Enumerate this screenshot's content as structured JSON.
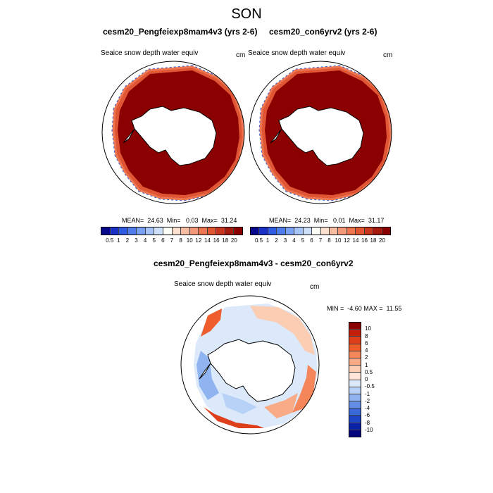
{
  "title": "SON",
  "panels": [
    {
      "title": "cesm20_Pengfeiexp8mam4v3 (yrs 2-6)",
      "variable": "Seaice snow depth water equiv",
      "units": "cm",
      "stats": "MEAN=  24.63  Min=   0.03  Max=  31.24"
    },
    {
      "title": "cesm20_con6yrv2 (yrs 2-6)",
      "variable": "Seaice snow depth water equiv",
      "units": "cm",
      "stats": "MEAN=  24.23  Min=   0.01  Max=  31.17"
    },
    {
      "title": "cesm20_Pengfeiexp8mam4v3 - cesm20_con6yrv2",
      "variable": "Seaice snow depth water equiv",
      "units": "cm",
      "stats": "MIN =  -4.60 MAX =  11.55"
    }
  ],
  "colorbars": {
    "absolute": {
      "labels": [
        "0.5",
        "1",
        "2",
        "3",
        "4",
        "5",
        "6",
        "7",
        "8",
        "10",
        "12",
        "14",
        "16",
        "18",
        "20"
      ],
      "colors": [
        "#08088c",
        "#1a2ec8",
        "#2f5be0",
        "#4f7eeb",
        "#7aa2f2",
        "#a6c4f7",
        "#cfe0fb",
        "#fdfdf7",
        "#fbe0cf",
        "#f7bda3",
        "#f29a78",
        "#ec7652",
        "#e05534",
        "#c9361f",
        "#a41a0c",
        "#8b0000"
      ]
    },
    "difference": {
      "labels": [
        "10",
        "8",
        "6",
        "4",
        "2",
        "1",
        "0.5",
        "0",
        "-0.5",
        "-1",
        "-2",
        "-4",
        "-6",
        "-8",
        "-10"
      ],
      "colors": [
        "#8b0000",
        "#c1200b",
        "#de3f1b",
        "#ef5d2c",
        "#f48659",
        "#f8ab86",
        "#fbcdb3",
        "#fde6d8",
        "#dbe9fb",
        "#b7d2f6",
        "#8fb4ef",
        "#6390e6",
        "#3a6ad9",
        "#1c45c6",
        "#0a22a6",
        "#05057f"
      ]
    }
  },
  "chart_data": [
    {
      "type": "heatmap",
      "projection": "south polar stereographic",
      "title": "cesm20_Pengfeiexp8mam4v3 (yrs 2-6)",
      "variable": "Seaice snow depth water equiv",
      "units": "cm",
      "mean": 24.63,
      "min": 0.03,
      "max": 31.24,
      "color_levels": [
        0.5,
        1,
        2,
        3,
        4,
        5,
        6,
        7,
        8,
        10,
        12,
        14,
        16,
        18,
        20
      ],
      "pattern": "Saturated dark red (>20 cm) over the broad ring of sea ice surrounding Antarctica; thin orange-to-blue fringe at the outer ice edge with lowest values along the western/Indian sector margin"
    },
    {
      "type": "heatmap",
      "projection": "south polar stereographic",
      "title": "cesm20_con6yrv2 (yrs 2-6)",
      "variable": "Seaice snow depth water equiv",
      "units": "cm",
      "mean": 24.23,
      "min": 0.01,
      "max": 31.17,
      "color_levels": [
        0.5,
        1,
        2,
        3,
        4,
        5,
        6,
        7,
        8,
        10,
        12,
        14,
        16,
        18,
        20
      ],
      "pattern": "Nearly identical to experiment: dark red interior ring with narrow blue/orange ice-edge fringe"
    },
    {
      "type": "heatmap",
      "projection": "south polar stereographic",
      "title": "cesm20_Pengfeiexp8mam4v3 - cesm20_con6yrv2",
      "variable": "Seaice snow depth water equiv",
      "units": "cm",
      "min": -4.6,
      "max": 11.55,
      "color_levels": [
        -10,
        -8,
        -6,
        -4,
        -2,
        -1,
        -0.5,
        0,
        0.5,
        1,
        2,
        4,
        6,
        8,
        10
      ],
      "pattern": "Mostly small positive differences (0.5-2 cm) across the ice pack; stronger positive (4-10 cm) near the Weddell/Atlantic edge and along the outer ring in the Indian/Pacific sectors; weak negative (-0.5 to -2) patches in the Ross/Amundsen sector and near the peninsula"
    }
  ]
}
